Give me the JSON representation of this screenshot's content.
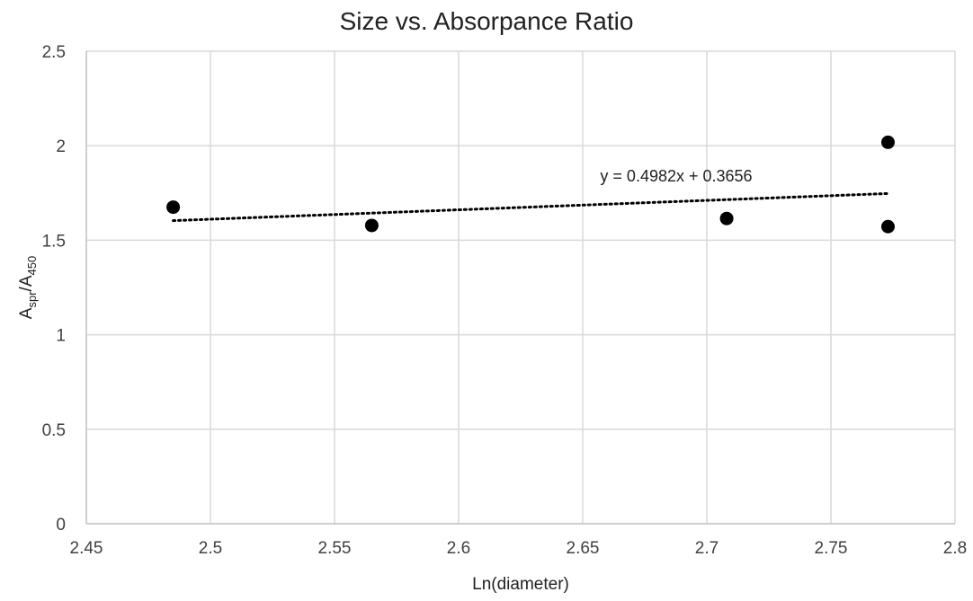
{
  "chart_data": {
    "type": "scatter",
    "title": "Size vs. Absorpance Ratio",
    "xlabel": "Ln(diameter)",
    "ylabel": {
      "main_a": "A",
      "sub_a": "spr",
      "sep": "/A",
      "sub_b": "450"
    },
    "xlim": [
      2.45,
      2.8
    ],
    "ylim": [
      0,
      2.5
    ],
    "x_ticks": [
      2.45,
      2.5,
      2.55,
      2.6,
      2.65,
      2.7,
      2.75,
      2.8
    ],
    "x_tick_labels": [
      "2.45",
      "2.5",
      "2.55",
      "2.6",
      "2.65",
      "2.7",
      "2.75",
      "2.8"
    ],
    "y_ticks": [
      0,
      0.5,
      1,
      1.5,
      2,
      2.5
    ],
    "y_tick_labels": [
      "0",
      "0.5",
      "1",
      "1.5",
      "2",
      "2.5"
    ],
    "grid": true,
    "series": [
      {
        "x": [
          2.485,
          2.565,
          2.708,
          2.773,
          2.773
        ],
        "y": [
          1.675,
          1.578,
          1.615,
          2.018,
          1.572
        ],
        "color": "#000000"
      }
    ],
    "trendline": {
      "type": "linear",
      "slope": 0.4982,
      "intercept": 0.3656,
      "x_range": [
        2.485,
        2.773
      ],
      "label": "y = 0.4982x + 0.3656",
      "style": "dotted",
      "color": "#000000"
    }
  }
}
